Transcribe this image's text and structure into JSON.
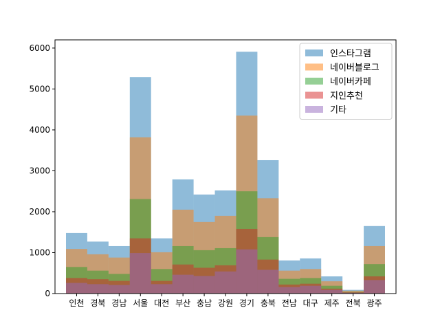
{
  "chart_data": {
    "type": "bar",
    "overlay": true,
    "categories": [
      "인천",
      "경북",
      "경남",
      "서울",
      "대전",
      "부산",
      "충남",
      "강원",
      "경기",
      "충북",
      "전남",
      "대구",
      "제주",
      "전북",
      "광주"
    ],
    "series": [
      {
        "name": "인스타그램",
        "color": "#1f77b4",
        "values": [
          1480,
          1270,
          1160,
          5290,
          1350,
          2790,
          2420,
          2520,
          5910,
          3260,
          810,
          860,
          420,
          90,
          1650
        ]
      },
      {
        "name": "네이버블로그",
        "color": "#ff7f0e",
        "values": [
          1090,
          960,
          880,
          3820,
          1010,
          2050,
          1750,
          1900,
          4350,
          2330,
          560,
          600,
          300,
          70,
          1160
        ]
      },
      {
        "name": "네이버카페",
        "color": "#2ca02c",
        "values": [
          650,
          560,
          480,
          2310,
          600,
          1160,
          1060,
          1110,
          2500,
          1380,
          360,
          380,
          190,
          40,
          720
        ]
      },
      {
        "name": "지인추천",
        "color": "#d62728",
        "values": [
          380,
          350,
          310,
          1350,
          310,
          710,
          630,
          690,
          1580,
          830,
          220,
          240,
          120,
          30,
          420
        ]
      },
      {
        "name": "기타",
        "color": "#9467bd",
        "values": [
          260,
          230,
          210,
          990,
          230,
          460,
          430,
          540,
          1080,
          580,
          160,
          190,
          90,
          20,
          330
        ]
      }
    ],
    "ylim": [
      0,
      6200
    ],
    "yticks": [
      0,
      1000,
      2000,
      3000,
      4000,
      5000,
      6000
    ],
    "legend": "top-right",
    "grid": false,
    "title": "",
    "xlabel": "",
    "ylabel": ""
  }
}
